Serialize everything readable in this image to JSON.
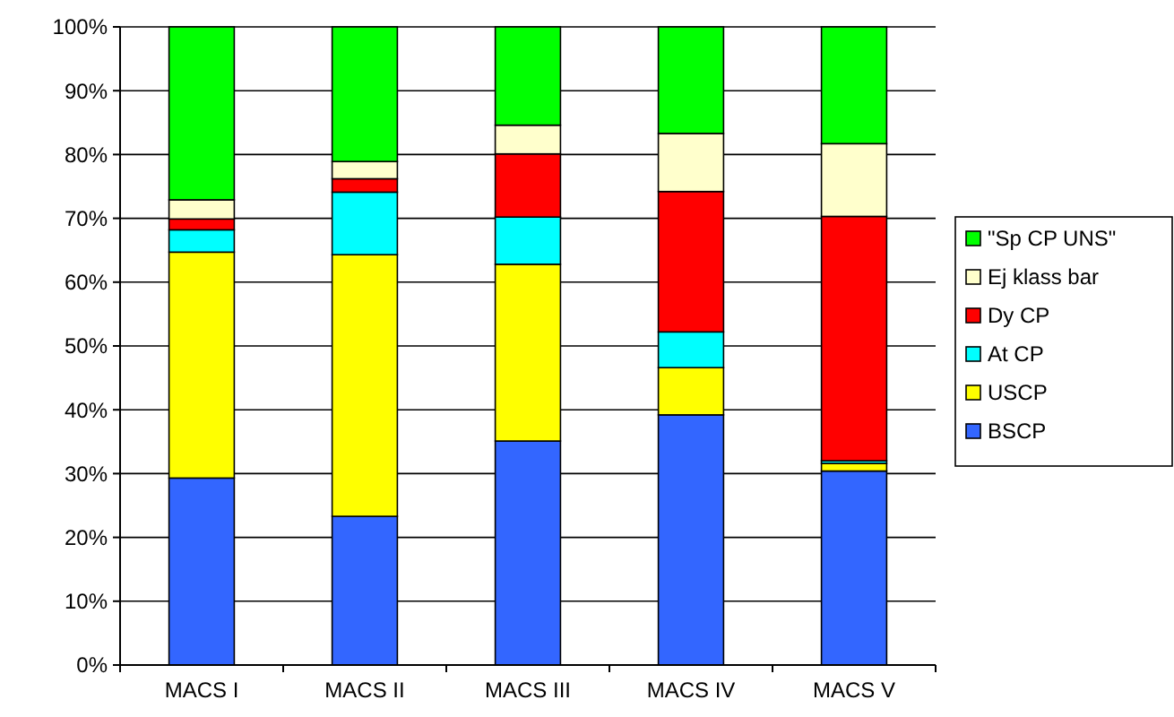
{
  "chart_data": {
    "type": "bar",
    "stacked": true,
    "categories": [
      "MACS I",
      "MACS II",
      "MACS III",
      "MACS IV",
      "MACS V"
    ],
    "series": [
      {
        "name": "BSCP",
        "color": "#3366ff",
        "values": [
          29.3,
          23.3,
          35.1,
          39.2,
          30.4
        ]
      },
      {
        "name": "USCP",
        "color": "#ffff00",
        "values": [
          35.4,
          41.0,
          27.7,
          7.4,
          1.2
        ]
      },
      {
        "name": "At CP",
        "color": "#00ffff",
        "values": [
          3.5,
          9.8,
          7.4,
          5.6,
          0.4
        ]
      },
      {
        "name": "Dy CP",
        "color": "#ff0000",
        "values": [
          1.7,
          2.1,
          9.9,
          22.0,
          38.3
        ]
      },
      {
        "name": "Ej klass bar",
        "color": "#ffffcc",
        "values": [
          3.0,
          2.7,
          4.5,
          9.1,
          11.4
        ]
      },
      {
        "name": "\"Sp CP UNS\"",
        "color": "#00ff00",
        "values": [
          27.1,
          21.1,
          15.4,
          16.7,
          18.3
        ]
      }
    ],
    "ylim": [
      0,
      100
    ],
    "yticks": [
      {
        "value": 0,
        "label": "0%"
      },
      {
        "value": 10,
        "label": "10%"
      },
      {
        "value": 20,
        "label": "20%"
      },
      {
        "value": 30,
        "label": "30%"
      },
      {
        "value": 40,
        "label": "40%"
      },
      {
        "value": 50,
        "label": "50%"
      },
      {
        "value": 60,
        "label": "60%"
      },
      {
        "value": 70,
        "label": "70%"
      },
      {
        "value": 80,
        "label": "80%"
      },
      {
        "value": 90,
        "label": "90%"
      },
      {
        "value": 100,
        "label": "100%"
      }
    ],
    "grid": "y",
    "legend": "right"
  }
}
